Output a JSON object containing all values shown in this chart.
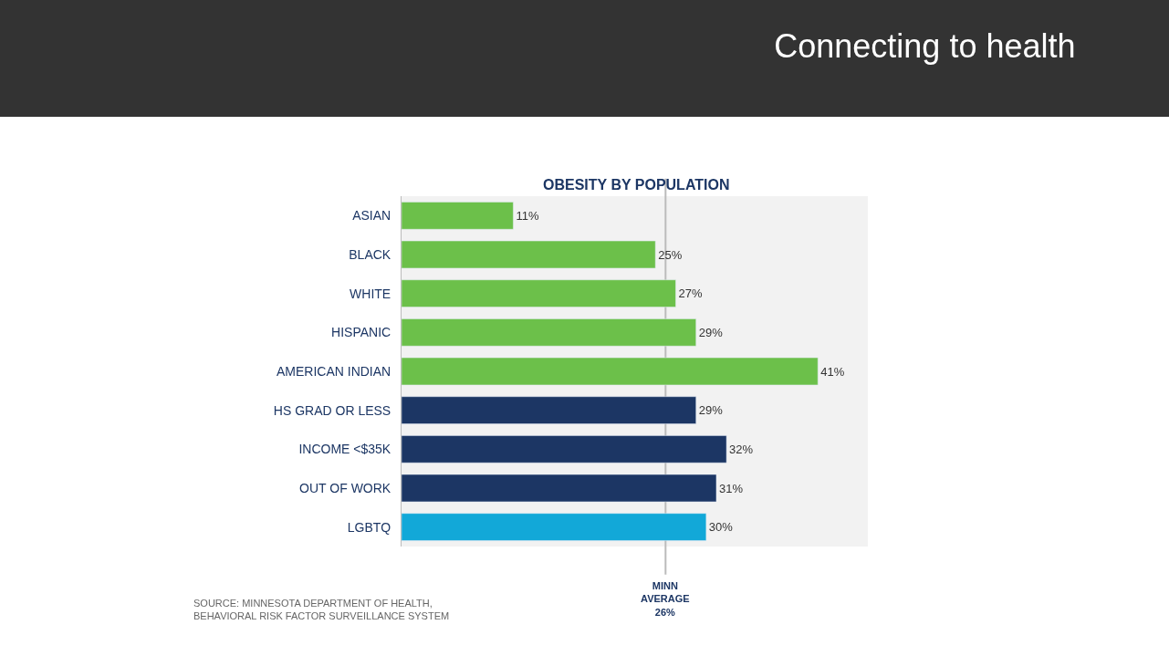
{
  "chart_data": {
    "type": "bar",
    "orientation": "horizontal",
    "title": "Connecting to health",
    "subtitle": "OBESITY BY POPULATION",
    "categories": [
      "ASIAN",
      "BLACK",
      "WHITE",
      "HISPANIC",
      "AMERICAN INDIAN",
      "HS GRAD OR LESS",
      "INCOME <$35K",
      "OUT OF WORK",
      "LGBTQ"
    ],
    "values": [
      11,
      25,
      27,
      29,
      41,
      29,
      32,
      31,
      30
    ],
    "colors": [
      "#6cc04a",
      "#6cc04a",
      "#6cc04a",
      "#6cc04a",
      "#6cc04a",
      "#1c3664",
      "#1c3664",
      "#1c3664",
      "#12a8d8"
    ],
    "value_labels": [
      "11%",
      "25%",
      "27%",
      "29%",
      "41%",
      "29%",
      "32%",
      "31%",
      "30%"
    ],
    "ref_lines": [
      {
        "axis": "x",
        "value": 26,
        "label": "MINN AVERAGE 26%",
        "color": "#bbbbbb"
      }
    ],
    "annotations": [
      "SOURCE: MINNESOTA DEPARTMENT OF HEALTH, BEHAVIORAL RISK FACTOR SURVEILLANCE SYSTEM"
    ],
    "grid": false,
    "legend": false
  }
}
